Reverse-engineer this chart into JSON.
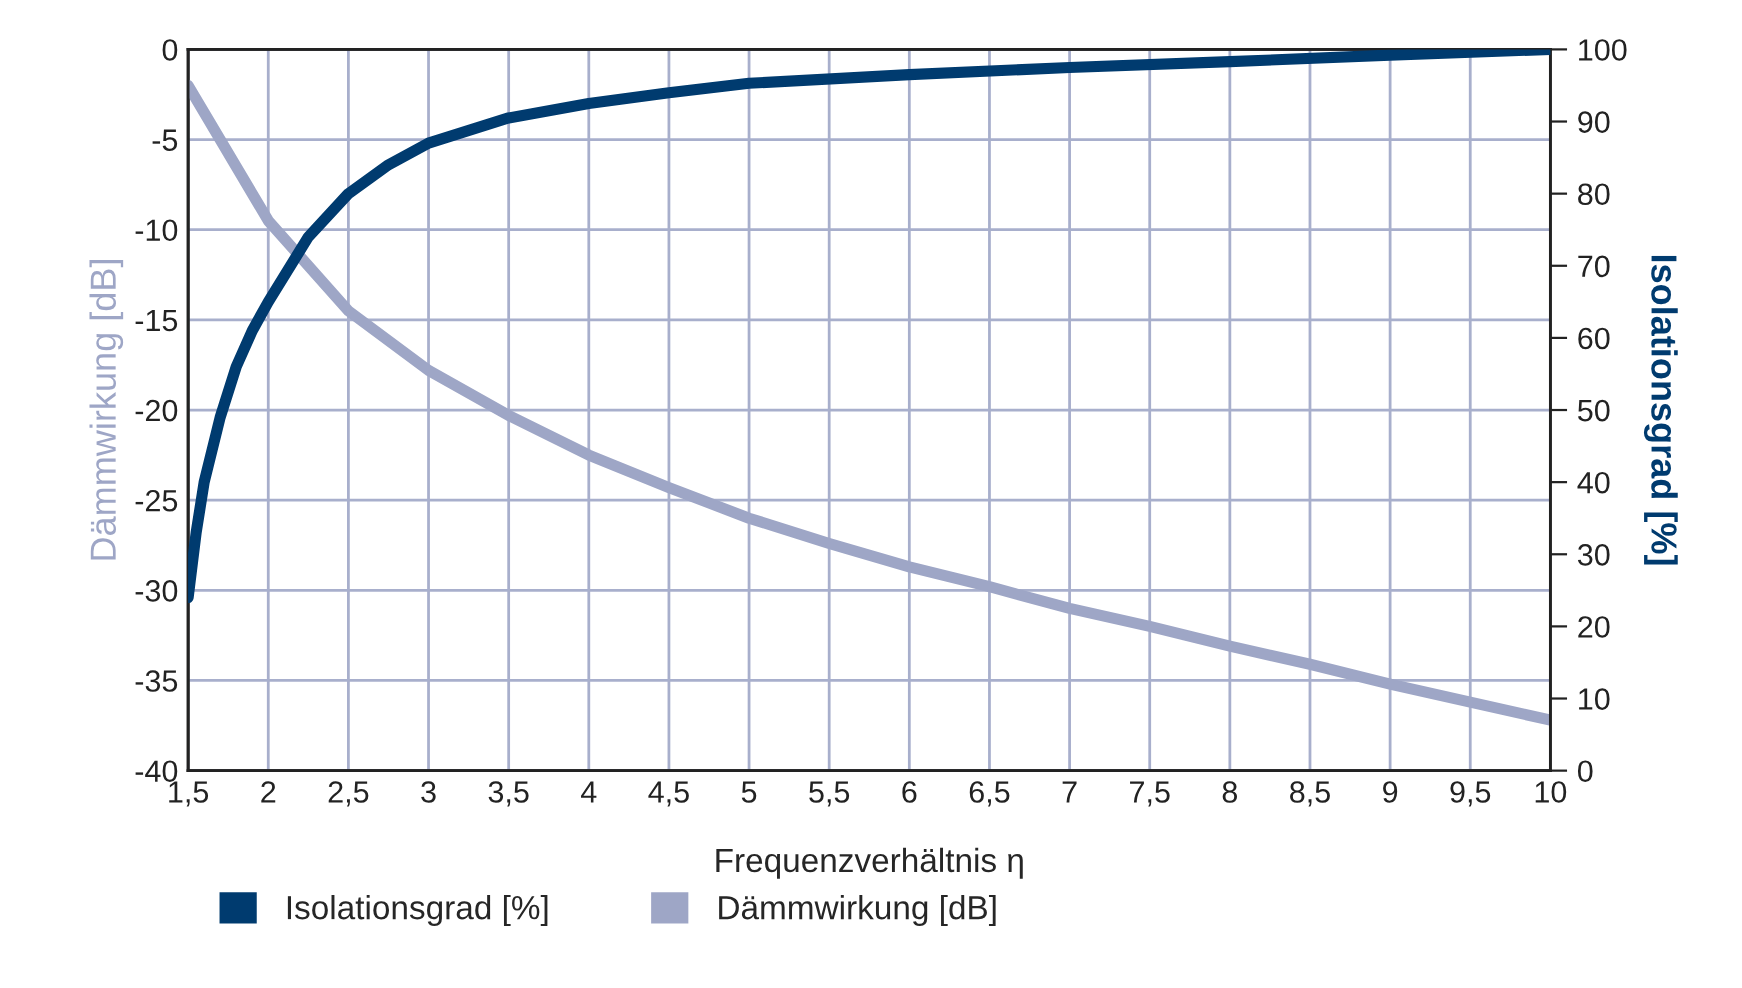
{
  "chart_data": {
    "type": "line",
    "xlabel": "Frequenzverhältnis η",
    "ylabel": "Dämmwirkung [dB]",
    "y2label": "Isolationsgrad [%]",
    "series": [
      {
        "name": "Isolationsgrad [%]",
        "color": "#003b6f",
        "axis": "y2",
        "x": [
          1.5,
          1.55,
          1.6,
          1.7,
          1.8,
          1.9,
          2,
          2.25,
          2.5,
          2.75,
          3,
          3.5,
          4,
          4.5,
          5,
          6,
          7,
          8,
          9,
          10
        ],
        "values": [
          24,
          33,
          40,
          49,
          56,
          61,
          65,
          74,
          80,
          84,
          87,
          90.5,
          92.5,
          94,
          95.3,
          96.5,
          97.5,
          98.3,
          99.2,
          100
        ]
      },
      {
        "name": "Dämmwirkung [dB]",
        "color": "#9ea6c6",
        "x": [
          1.5,
          2,
          2.5,
          3,
          3.5,
          4,
          4.5,
          5,
          5.5,
          6,
          6.5,
          7,
          7.5,
          8,
          8.5,
          9,
          9.5,
          10
        ],
        "values": [
          -2,
          -9.5,
          -14.5,
          -17.8,
          -20.3,
          -22.5,
          -24.3,
          -26,
          -27.4,
          -28.7,
          -29.8,
          -31,
          -32,
          -33.1,
          -34.1,
          -35.2,
          -36.2,
          -37.2
        ]
      }
    ],
    "xlim": [
      1.5,
      10
    ],
    "xticks": [
      {
        "value": 1.5,
        "label": "1,5"
      },
      2,
      {
        "value": 2.5,
        "label": "2,5"
      },
      3,
      {
        "value": 3.5,
        "label": "3,5"
      },
      4,
      {
        "value": 4.5,
        "label": "4,5"
      },
      5,
      {
        "value": 5.5,
        "label": "5,5"
      },
      6,
      {
        "value": 6.5,
        "label": "6,5"
      },
      7,
      {
        "value": 7.5,
        "label": "7,5"
      },
      8,
      {
        "value": 8.5,
        "label": "8,5"
      },
      9,
      {
        "value": 9.5,
        "label": "9,5"
      },
      10
    ],
    "ylim": [
      -40,
      0
    ],
    "yticks": [
      -40,
      -35,
      -30,
      -25,
      -20,
      -15,
      -10,
      -5,
      0
    ],
    "y2lim": [
      0,
      100
    ],
    "y2ticks": [
      0,
      10,
      20,
      30,
      40,
      50,
      60,
      70,
      80,
      90,
      100
    ],
    "grid": true,
    "legend": "bottom",
    "marker": "none",
    "line_style": "solid"
  }
}
